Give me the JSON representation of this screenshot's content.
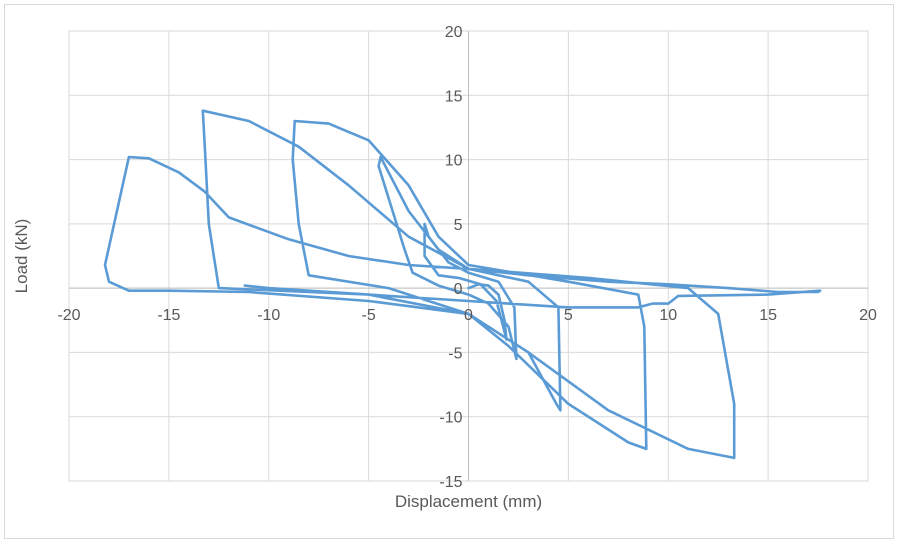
{
  "chart_data": {
    "type": "line",
    "title": "",
    "xlabel": "Displacement (mm)",
    "ylabel": "Load (kN)",
    "xlim": [
      -20,
      20
    ],
    "ylim": [
      -15,
      20
    ],
    "x_ticks": [
      -20,
      -15,
      -10,
      -5,
      0,
      5,
      10,
      15,
      20
    ],
    "y_ticks": [
      -15,
      -10,
      -5,
      0,
      5,
      10,
      15,
      20
    ],
    "x_tick_labels": [
      "-20",
      "-15",
      "-10",
      "-5",
      "0",
      "5",
      "10",
      "15",
      "20"
    ],
    "y_tick_labels": [
      "-15",
      "-10",
      "-5",
      "0",
      "5",
      "10",
      "15",
      "20"
    ],
    "grid": true,
    "legend": "none",
    "line_color": "#5b9bd5",
    "series": [
      {
        "points": [
          [
            0.0,
            0.0
          ],
          [
            0.5,
            0.3
          ],
          [
            1.0,
            0.2
          ],
          [
            1.5,
            -0.5
          ],
          [
            1.8,
            -2.5
          ],
          [
            1.9,
            -4.0
          ],
          [
            1.4,
            -1.0
          ],
          [
            0.6,
            0.3
          ],
          [
            -0.5,
            0.8
          ],
          [
            -1.5,
            1.0
          ],
          [
            -2.2,
            2.5
          ],
          [
            -2.2,
            5.0
          ],
          [
            -2.0,
            4.0
          ],
          [
            -1.0,
            2.0
          ],
          [
            0.0,
            1.2
          ],
          [
            1.5,
            0.5
          ],
          [
            2.3,
            -1.5
          ],
          [
            2.4,
            -5.5
          ],
          [
            2.0,
            -3.0
          ],
          [
            1.0,
            -1.2
          ],
          [
            0.0,
            -0.5
          ],
          [
            -1.5,
            0.2
          ],
          [
            -2.8,
            1.2
          ],
          [
            -3.2,
            3.0
          ],
          [
            -4.5,
            9.5
          ],
          [
            -4.4,
            10.2
          ],
          [
            -4.0,
            9.0
          ],
          [
            -3.0,
            6.0
          ],
          [
            -1.5,
            3.0
          ],
          [
            0.0,
            1.5
          ],
          [
            3.0,
            0.5
          ],
          [
            4.5,
            -1.5
          ],
          [
            4.6,
            -9.5
          ],
          [
            4.4,
            -9.0
          ],
          [
            3.0,
            -5.0
          ],
          [
            0.0,
            -2.0
          ],
          [
            -4.0,
            0.0
          ],
          [
            -8.0,
            1.0
          ],
          [
            -8.5,
            5.0
          ],
          [
            -8.8,
            10.0
          ],
          [
            -8.7,
            13.0
          ],
          [
            -7.0,
            12.8
          ],
          [
            -5.0,
            11.5
          ],
          [
            -3.0,
            8.0
          ],
          [
            -1.5,
            4.0
          ],
          [
            0.0,
            1.8
          ],
          [
            5.0,
            0.5
          ],
          [
            8.5,
            -0.5
          ],
          [
            8.8,
            -3.0
          ],
          [
            8.9,
            -12.5
          ],
          [
            8.0,
            -12.0
          ],
          [
            5.0,
            -9.0
          ],
          [
            2.0,
            -4.5
          ],
          [
            0.0,
            -2.0
          ],
          [
            -5.0,
            -0.5
          ],
          [
            -12.5,
            0.0
          ],
          [
            -13.0,
            5.0
          ],
          [
            -13.2,
            11.0
          ],
          [
            -13.3,
            13.8
          ],
          [
            -11.0,
            13.0
          ],
          [
            -8.5,
            11.0
          ],
          [
            -6.0,
            8.0
          ],
          [
            -3.0,
            4.0
          ],
          [
            0.0,
            1.5
          ],
          [
            6.0,
            0.8
          ],
          [
            11.0,
            0.0
          ],
          [
            12.5,
            -2.0
          ],
          [
            13.3,
            -9.0
          ],
          [
            13.3,
            -13.2
          ],
          [
            11.0,
            -12.5
          ],
          [
            7.0,
            -9.5
          ],
          [
            3.0,
            -5.0
          ],
          [
            0.0,
            -2.0
          ],
          [
            -5.0,
            -1.0
          ],
          [
            -11.0,
            -0.3
          ],
          [
            -15.0,
            -0.2
          ],
          [
            -17.0,
            -0.2
          ],
          [
            -18.0,
            0.5
          ],
          [
            -18.2,
            1.8
          ],
          [
            -17.0,
            10.2
          ],
          [
            -16.0,
            10.1
          ],
          [
            -14.5,
            9.0
          ],
          [
            -13.2,
            7.5
          ],
          [
            -12.0,
            5.5
          ],
          [
            -9.0,
            3.8
          ],
          [
            -6.0,
            2.5
          ],
          [
            -3.0,
            1.8
          ],
          [
            0.0,
            1.5
          ],
          [
            3.0,
            1.0
          ],
          [
            7.0,
            0.5
          ],
          [
            10.0,
            0.3
          ],
          [
            13.0,
            0.0
          ],
          [
            15.5,
            -0.3
          ],
          [
            17.5,
            -0.3
          ],
          [
            17.6,
            -0.2
          ],
          [
            15.0,
            -0.5
          ],
          [
            10.5,
            -0.6
          ],
          [
            10.0,
            -1.2
          ],
          [
            9.2,
            -1.2
          ],
          [
            8.5,
            -1.5
          ],
          [
            6.5,
            -1.5
          ],
          [
            5.0,
            -1.5
          ],
          [
            2.0,
            -1.2
          ],
          [
            0.0,
            -1.0
          ],
          [
            -5.0,
            -0.5
          ],
          [
            -10.0,
            0.0
          ],
          [
            -11.2,
            0.2
          ]
        ]
      }
    ]
  }
}
